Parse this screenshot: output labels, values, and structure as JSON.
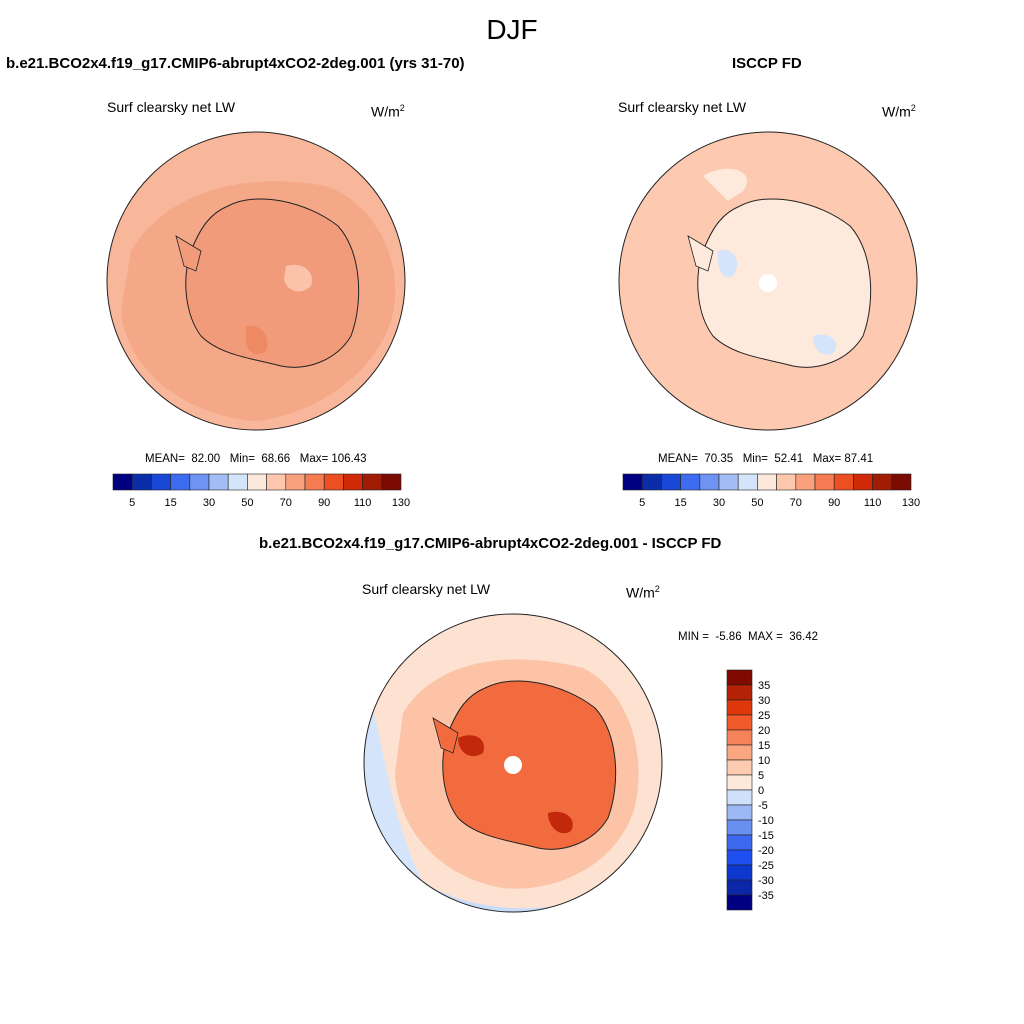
{
  "season": "DJF",
  "panels": [
    {
      "title": "b.e21.BCO2x4.f19_g17.CMIP6-abrupt4xCO2-2deg.001 (yrs 31-70)",
      "variable": "Surf clearsky net LW",
      "units_base": "W/m",
      "units_exp": "2",
      "stats": {
        "mean_label": "MEAN=",
        "mean": "82.00",
        "min_label": "Min=",
        "min": "68.66",
        "max_label": "Max=",
        "max": "106.43"
      }
    },
    {
      "title": "ISCCP FD",
      "variable": "Surf clearsky net LW",
      "units_base": "W/m",
      "units_exp": "2",
      "stats": {
        "mean_label": "MEAN=",
        "mean": "70.35",
        "min_label": "Min=",
        "min": "52.41",
        "max_label": "Max=",
        "max": "87.41"
      }
    },
    {
      "title": "b.e21.BCO2x4.f19_g17.CMIP6-abrupt4xCO2-2deg.001 - ISCCP FD",
      "variable": "Surf clearsky net LW",
      "units_base": "W/m",
      "units_exp": "2",
      "stats": {
        "min_label": "MIN =",
        "min": "-5.86",
        "max_label": "MAX =",
        "max": "36.42"
      }
    }
  ],
  "colorbar_main": {
    "orientation": "horizontal",
    "colors": [
      "#000080",
      "#0b2ea8",
      "#1a48d6",
      "#3d6cf0",
      "#6e93f2",
      "#a2bdf6",
      "#d3e4fb",
      "#fde9dc",
      "#fdc8ae",
      "#f9a07d",
      "#f57b52",
      "#ec4f22",
      "#d12a08",
      "#a01c04",
      "#7a0a02"
    ],
    "tick_labels": [
      "5",
      "15",
      "30",
      "50",
      "70",
      "90",
      "110",
      "130"
    ]
  },
  "colorbar_diff": {
    "orientation": "vertical",
    "colors": [
      "#000080",
      "#0b26a6",
      "#0d38cf",
      "#1f4ef0",
      "#3c69f0",
      "#6890f1",
      "#9cb8f5",
      "#cfe1fa",
      "#fde9dc",
      "#fdcbb0",
      "#faa681",
      "#f6825a",
      "#f15a2a",
      "#df380c",
      "#b52206",
      "#800a00"
    ],
    "tick_labels": [
      "-35",
      "-30",
      "-25",
      "-20",
      "-15",
      "-10",
      "-5",
      "0",
      "5",
      "10",
      "15",
      "20",
      "25",
      "30",
      "35"
    ]
  },
  "map_colors": {
    "model_ocean": "#f4a888",
    "model_land": "#f19b7b",
    "obs_ocean": "#fdc9b0",
    "obs_land": "#feeadd",
    "diff_ocean": "#fde2d2",
    "diff_land": "#f26b3f"
  }
}
